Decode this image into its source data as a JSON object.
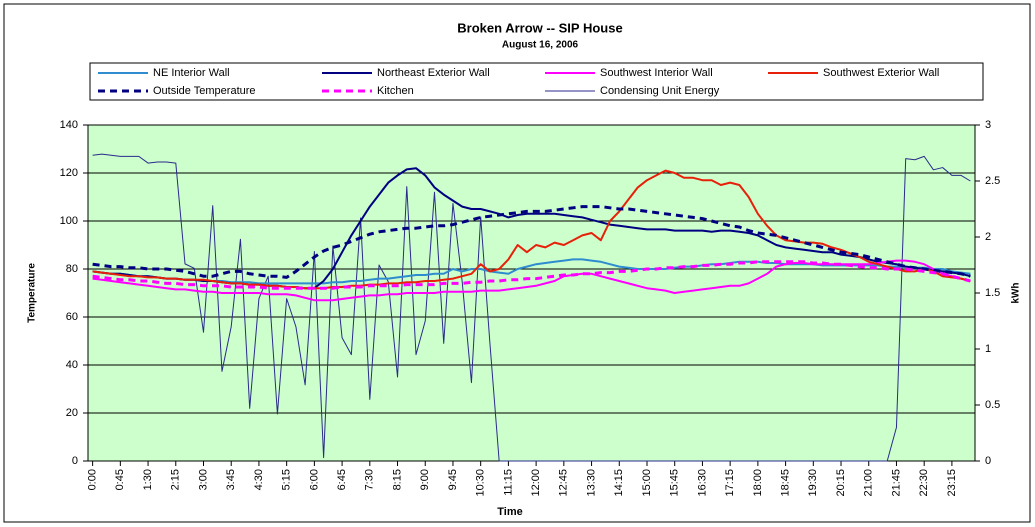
{
  "chart_data": {
    "type": "line",
    "title": "Broken Arrow -- SIP House",
    "subtitle": "August 16, 2006",
    "x_label": "Time",
    "y_label": "Temperature",
    "y2_label": "kWh",
    "categories": [
      "0:00",
      null,
      null,
      "0:45",
      null,
      null,
      "1:30",
      null,
      null,
      "2:15",
      null,
      null,
      "3:00",
      null,
      null,
      "3:45",
      null,
      null,
      "4:30",
      null,
      null,
      "5:15",
      null,
      null,
      "6:00",
      null,
      null,
      "6:45",
      null,
      null,
      "7:30",
      null,
      null,
      "8:15",
      null,
      null,
      "9:00",
      null,
      null,
      "9:45",
      null,
      null,
      "10:30",
      null,
      null,
      "11:15",
      null,
      null,
      "12:00",
      null,
      null,
      "12:45",
      null,
      null,
      "13:30",
      null,
      null,
      "14:15",
      null,
      null,
      "15:00",
      null,
      null,
      "15:45",
      null,
      null,
      "16:30",
      null,
      null,
      "17:15",
      null,
      null,
      "18:00",
      null,
      null,
      "18:45",
      null,
      null,
      "19:30",
      null,
      null,
      "20:15",
      null,
      null,
      "21:00",
      null,
      null,
      "21:45",
      null,
      null,
      "22:30",
      null,
      null,
      "23:15",
      null,
      null
    ],
    "ylim": [
      0,
      140
    ],
    "yticks": [
      0,
      20,
      40,
      60,
      80,
      100,
      120,
      140
    ],
    "y2lim": [
      0,
      3
    ],
    "y2ticks": [
      0,
      0.5,
      1,
      1.5,
      2,
      2.5,
      3
    ],
    "grid": true,
    "legend": "top",
    "series": [
      {
        "name": "NE Interior Wall",
        "color": "#2e8ccf",
        "dashed": false,
        "values": [
          79,
          78.5,
          78,
          78,
          77.5,
          77,
          77,
          76.5,
          76,
          76,
          75.5,
          75.5,
          75,
          75,
          75,
          74.5,
          74.5,
          74.5,
          74,
          74,
          74,
          74,
          74,
          74,
          74,
          74,
          74.5,
          74.5,
          75,
          75,
          75.5,
          76,
          76,
          76.5,
          77,
          77.5,
          77.5,
          78,
          78,
          80,
          79,
          80,
          80,
          79,
          78.5,
          78,
          80,
          81,
          82,
          82.5,
          83,
          83.5,
          84,
          84,
          83.5,
          83,
          82,
          81,
          80.5,
          80,
          80,
          80,
          80,
          80.5,
          81,
          81,
          81.5,
          82,
          82,
          82.5,
          83,
          83,
          83,
          82.5,
          82.5,
          82,
          82,
          82,
          82,
          81.5,
          81.5,
          81.5,
          81.5,
          81.5,
          81.5,
          81.5,
          81,
          81,
          81,
          80.5,
          80.5,
          80,
          80,
          79,
          78.5,
          78
        ]
      },
      {
        "name": "Northeast Exterior Wall",
        "color": "#000080",
        "dashed": false,
        "values": [
          79,
          78.5,
          78,
          78,
          77.5,
          77,
          77,
          76.5,
          76,
          76,
          75.5,
          75.5,
          75,
          75,
          74.5,
          74,
          74,
          73.5,
          73.5,
          73,
          73,
          72.5,
          72.5,
          72,
          72,
          75,
          80,
          87,
          94,
          100,
          106,
          111,
          116,
          119,
          121.5,
          122,
          119,
          114,
          111,
          108.5,
          106,
          105,
          105,
          104,
          103,
          101.5,
          102.5,
          103,
          103,
          103,
          103,
          102.5,
          102,
          101.5,
          100.5,
          99.5,
          98.5,
          98,
          97.5,
          97,
          96.5,
          96.5,
          96.5,
          96,
          96,
          96,
          96,
          95.5,
          96,
          96,
          95.5,
          95,
          94,
          92,
          90,
          89,
          88.5,
          88,
          87.5,
          87,
          87,
          86,
          85.5,
          85,
          84,
          83,
          82.5,
          82,
          81,
          80.5,
          80,
          79.5,
          79,
          78.5,
          78,
          77
        ]
      },
      {
        "name": "Southwest Interior Wall",
        "color": "#ff00ff",
        "dashed": false,
        "values": [
          76,
          75.5,
          75,
          74.5,
          74,
          73.5,
          73,
          72.5,
          72,
          71.5,
          71.5,
          71,
          70.5,
          70.5,
          70,
          70,
          70,
          70,
          70,
          69.5,
          69.5,
          69.5,
          69,
          68,
          67,
          67,
          67,
          67.5,
          68,
          68.5,
          69,
          69,
          69.5,
          69.5,
          70,
          70,
          70,
          70,
          70.5,
          70.5,
          70.5,
          70.5,
          71,
          71,
          71,
          71.5,
          72,
          72.5,
          73,
          74,
          75,
          77,
          77.5,
          78,
          78,
          77,
          76,
          75,
          74,
          73,
          72,
          71.5,
          71,
          70,
          70.5,
          71,
          71.5,
          72,
          72.5,
          73,
          73,
          74,
          76,
          78,
          81,
          82,
          82.5,
          82.5,
          82,
          82,
          82,
          82,
          82,
          82,
          82,
          82.5,
          83,
          83.5,
          83.5,
          83,
          82,
          80,
          78,
          77,
          76,
          75
        ]
      },
      {
        "name": "Southwest Exterior Wall",
        "color": "#e8200a",
        "dashed": false,
        "values": [
          79,
          78.5,
          78,
          77.5,
          77,
          77,
          76.5,
          76.5,
          76,
          76,
          75.5,
          75.5,
          75.5,
          75,
          74.5,
          74,
          74,
          73.5,
          73.5,
          73,
          73,
          72.5,
          72.5,
          72,
          72,
          72,
          72.5,
          72.5,
          73,
          73,
          73.5,
          73.5,
          74,
          74,
          74.5,
          74.5,
          75,
          75,
          75.5,
          76,
          77,
          78,
          82,
          79,
          80,
          84,
          90,
          87,
          90,
          89,
          91,
          90,
          92,
          94,
          95,
          92,
          100,
          104,
          109,
          114,
          117,
          119,
          121,
          120,
          118,
          118,
          117,
          117,
          115,
          116,
          115,
          110,
          103,
          98,
          94,
          92,
          91.5,
          91,
          91,
          90.5,
          89,
          88,
          86.5,
          85,
          83,
          82,
          81,
          80,
          79,
          79,
          80,
          79,
          77,
          76.5,
          76,
          75
        ]
      },
      {
        "name": "Outside Temperature",
        "color": "#000080",
        "dashed": true,
        "values": [
          82,
          81.5,
          81,
          81,
          80.5,
          80.5,
          80,
          80,
          80,
          79.5,
          79,
          78,
          77,
          77,
          78,
          79,
          79,
          78,
          77.5,
          77,
          77,
          76.5,
          79,
          82,
          85,
          87.5,
          89,
          90,
          91.5,
          93,
          94.5,
          95.5,
          96,
          96.5,
          97,
          97,
          97.5,
          98,
          98,
          98.5,
          99.5,
          100.5,
          101.5,
          102,
          102.5,
          103,
          103.5,
          104,
          104,
          104,
          104.5,
          105,
          105.5,
          106,
          106,
          106,
          105.5,
          105,
          105,
          104.5,
          104,
          103.5,
          103,
          102.5,
          102,
          101.5,
          101,
          100,
          99,
          98,
          97.5,
          96,
          95,
          94.5,
          94,
          93,
          92,
          91,
          90,
          89,
          88,
          87,
          86.5,
          86,
          85,
          84,
          83,
          82,
          81,
          80.5,
          80,
          79.5,
          79,
          78.5,
          78,
          77
        ]
      },
      {
        "name": "Kitchen",
        "color": "#ff00ff",
        "dashed": true,
        "values": [
          77,
          76.5,
          76,
          75.5,
          75.5,
          75,
          75,
          74.5,
          74,
          74,
          73.5,
          73.5,
          73,
          73,
          73,
          72.5,
          72.5,
          72.5,
          72.5,
          72,
          72,
          72,
          72,
          72,
          72,
          72,
          72,
          72.5,
          72.5,
          72.5,
          73,
          73,
          73,
          73,
          73.5,
          73.5,
          73.5,
          73.5,
          74,
          74,
          74,
          74.5,
          74.5,
          75,
          75,
          75.5,
          75.5,
          76,
          76,
          76.5,
          77,
          77.5,
          77.5,
          78,
          78,
          78.5,
          78.5,
          79,
          79,
          79.5,
          80,
          80,
          80.5,
          80.5,
          81,
          81,
          81.5,
          81.5,
          82,
          82,
          82.5,
          82.5,
          83,
          83,
          83,
          83,
          83,
          83,
          82.5,
          82.5,
          82,
          82,
          81.5,
          81,
          80.5,
          80.5,
          80,
          80,
          80,
          79.5,
          79,
          78.5,
          78,
          77,
          76,
          75
        ]
      },
      {
        "name": "Condensing Unit Energy",
        "color": "#2a2a8c",
        "dashed": false,
        "axis": "y2",
        "values": [
          2.73,
          2.74,
          2.73,
          2.72,
          2.72,
          2.72,
          2.66,
          2.67,
          2.67,
          2.66,
          1.76,
          1.72,
          1.15,
          2.28,
          0.8,
          1.2,
          1.98,
          0.47,
          1.45,
          1.65,
          0.42,
          1.45,
          1.2,
          0.68,
          1.87,
          0.03,
          1.92,
          1.1,
          0.95,
          2.17,
          0.55,
          1.75,
          1.6,
          0.75,
          2.45,
          0.95,
          1.25,
          2.4,
          1.05,
          2.3,
          1.6,
          0.7,
          2.18,
          1.05,
          0,
          0,
          0,
          0,
          0,
          0,
          0,
          0,
          0,
          0,
          0,
          0,
          0,
          0,
          0,
          0,
          0,
          0,
          0,
          0,
          0,
          0,
          0,
          0,
          0,
          0,
          0,
          0,
          0,
          0,
          0,
          0,
          0,
          0,
          0,
          0,
          0,
          0,
          0,
          0,
          0,
          0,
          0,
          0.3,
          2.7,
          2.69,
          2.72,
          2.6,
          2.62,
          2.55,
          2.55,
          2.5
        ]
      }
    ]
  }
}
